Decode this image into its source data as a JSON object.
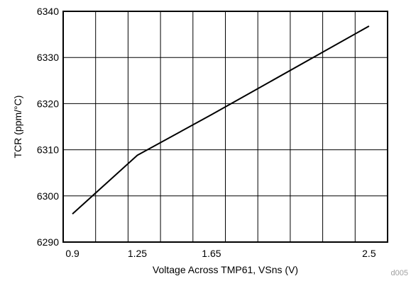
{
  "chart_data": {
    "type": "line",
    "title": "",
    "xlabel": "Voltage Across TMP61, VSns (V)",
    "ylabel": "TCR (ppm/°C)",
    "xlim": [
      0.85,
      2.6
    ],
    "ylim": [
      6290,
      6340
    ],
    "x_ticks": [
      0.9,
      1.25,
      1.65,
      2.5
    ],
    "x_tick_labels": [
      "0.9",
      "1.25",
      "1.65",
      "2.5"
    ],
    "y_ticks": [
      6290,
      6300,
      6310,
      6320,
      6330,
      6340
    ],
    "y_tick_labels": [
      "6290",
      "6300",
      "6310",
      "6320",
      "6330",
      "6340"
    ],
    "x_gridlines": [
      0.85,
      1.025,
      1.2,
      1.375,
      1.55,
      1.725,
      1.9,
      2.075,
      2.25,
      2.425,
      2.6
    ],
    "grid": true,
    "legend": "none",
    "series": [
      {
        "x": [
          0.9,
          1.25,
          1.65,
          2.5
        ],
        "y": [
          6296.1,
          6308.8,
          6317.6,
          6336.8
        ],
        "color": "#000000"
      }
    ],
    "figure_code": "d005"
  }
}
